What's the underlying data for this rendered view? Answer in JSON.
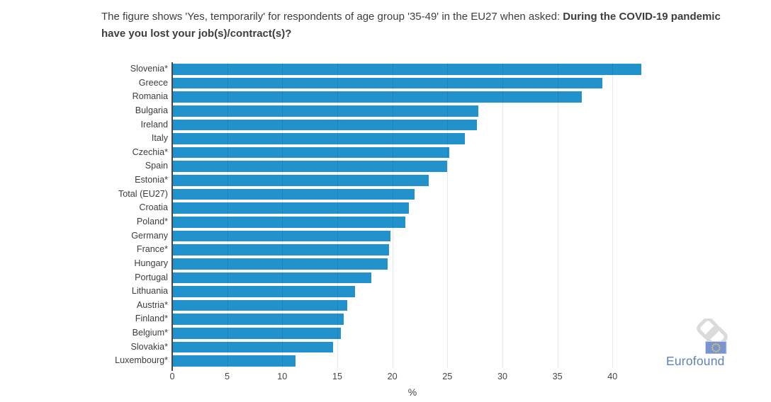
{
  "title": {
    "prefix": "The figure shows 'Yes, temporarily' for respondents of age group '35-49' in the EU27 when asked: ",
    "question": "During the COVID-19 pandemic have you lost your job(s)/contract(s)?"
  },
  "chart_data": {
    "type": "bar",
    "orientation": "horizontal",
    "categories": [
      "Slovenia*",
      "Greece",
      "Romania",
      "Bulgaria",
      "Ireland",
      "Italy",
      "Czechia*",
      "Spain",
      "Estonia*",
      "Total (EU27)",
      "Croatia",
      "Poland*",
      "Germany",
      "France*",
      "Hungary",
      "Portugal",
      "Lithuania",
      "Austria*",
      "Finland*",
      "Belgium*",
      "Slovakia*",
      "Luxembourg*"
    ],
    "values": [
      42.6,
      39.1,
      37.2,
      27.8,
      27.7,
      26.6,
      25.2,
      25.0,
      23.3,
      22.0,
      21.5,
      21.2,
      19.8,
      19.7,
      19.6,
      18.1,
      16.6,
      15.9,
      15.6,
      15.3,
      14.6,
      11.2
    ],
    "xlabel": "%",
    "xlim": [
      0,
      43.65
    ],
    "xticks": [
      0,
      5,
      10,
      15,
      20,
      25,
      30,
      35,
      40
    ],
    "grid": true,
    "legend": "none",
    "bar_color": "#2292cd"
  },
  "colors": {
    "axis_line": "#474747",
    "grid_line": "#e8e8e8",
    "text": "#3d3d3d"
  },
  "branding": {
    "wordmark": "Eurofound",
    "wordmark_color": "#5e81b8",
    "chainlink_color": "#dadada",
    "flag_color": "#7995cf",
    "flag_border_color": "#ccd6ee",
    "star_color": "#f2d53f"
  }
}
